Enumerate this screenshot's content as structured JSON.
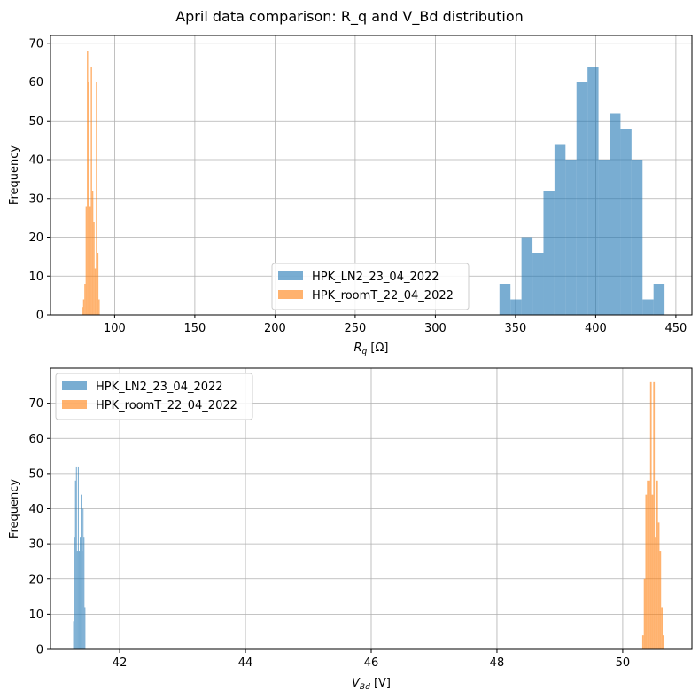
{
  "figure": {
    "title": "April data comparison: R_q and V_Bd distribution"
  },
  "chart_data": [
    {
      "type": "histogram",
      "xlabel_main": "R",
      "xlabel_sub": "q",
      "xlabel_unit": "[Ω]",
      "ylabel": "Frequency",
      "xlim": [
        60,
        460
      ],
      "ylim": [
        0,
        72
      ],
      "xticks": [
        100,
        150,
        200,
        250,
        300,
        350,
        400,
        450
      ],
      "yticks": [
        0,
        10,
        20,
        30,
        40,
        50,
        60,
        70
      ],
      "grid": true,
      "legend": {
        "placement": "lower-center",
        "entries": [
          "HPK_LN2_23_04_2022",
          "HPK_roomT_22_04_2022"
        ]
      },
      "series": [
        {
          "name": "HPK_LN2_23_04_2022",
          "color": "#1f77b4",
          "bin_edges": [
            340,
            346.86,
            353.72,
            360.59,
            367.45,
            374.31,
            381.17,
            388.03,
            394.9,
            401.76,
            408.62,
            415.48,
            422.34,
            429.21,
            436.07,
            442.93
          ],
          "counts": [
            8,
            4,
            20,
            16,
            32,
            44,
            40,
            60,
            64,
            40,
            52,
            48,
            40,
            4,
            8
          ]
        },
        {
          "name": "HPK_roomT_22_04_2022",
          "color": "#ff7f0e",
          "bin_edges": [
            79.5,
            80.3,
            81.1,
            81.9,
            82.7,
            83.5,
            84.3,
            85.1,
            85.9,
            86.7,
            87.5,
            88.3,
            89.1,
            89.9,
            90.7,
            91.5
          ],
          "counts": [
            2,
            4,
            8,
            28,
            68,
            60,
            28,
            64,
            32,
            24,
            12,
            60,
            16,
            4,
            0
          ]
        }
      ]
    },
    {
      "type": "histogram",
      "xlabel_main": "V",
      "xlabel_sub": "Bd",
      "xlabel_unit": "[V]",
      "ylabel": "Frequency",
      "xlim": [
        40.9,
        51.1
      ],
      "ylim": [
        0,
        80
      ],
      "xticks": [
        42,
        44,
        46,
        48,
        50
      ],
      "yticks": [
        0,
        10,
        20,
        30,
        40,
        50,
        60,
        70
      ],
      "grid": true,
      "legend": {
        "placement": "upper-left",
        "entries": [
          "HPK_LN2_23_04_2022",
          "HPK_roomT_22_04_2022"
        ]
      },
      "series": [
        {
          "name": "HPK_LN2_23_04_2022",
          "color": "#1f77b4",
          "bin_edges": [
            41.26,
            41.275,
            41.29,
            41.305,
            41.32,
            41.335,
            41.35,
            41.365,
            41.38,
            41.395,
            41.41,
            41.425,
            41.44,
            41.455,
            41.47,
            41.485
          ],
          "counts": [
            8,
            32,
            48,
            52,
            28,
            52,
            28,
            32,
            44,
            28,
            40,
            32,
            12,
            0,
            0
          ]
        },
        {
          "name": "HPK_roomT_22_04_2022",
          "color": "#ff7f0e",
          "bin_edges": [
            50.31,
            50.335,
            50.36,
            50.385,
            50.41,
            50.435,
            50.46,
            50.485,
            50.51,
            50.535,
            50.56,
            50.585,
            50.61,
            50.635,
            50.66
          ],
          "counts": [
            4,
            20,
            44,
            48,
            48,
            76,
            44,
            76,
            32,
            48,
            36,
            28,
            12,
            4
          ]
        }
      ]
    }
  ]
}
